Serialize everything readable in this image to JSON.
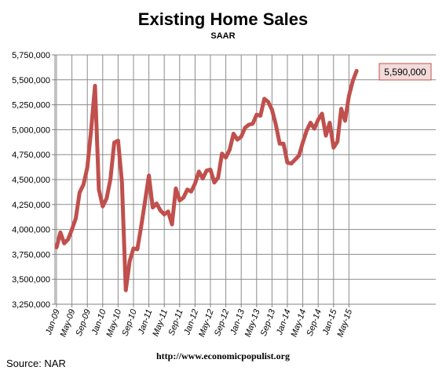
{
  "chart_data": {
    "type": "line",
    "title": "Existing Home Sales",
    "subtitle": "SAAR",
    "source": "Source:  NAR",
    "url": "http://www.economicpopulist.org",
    "ylim": [
      3250000,
      5750000
    ],
    "yticks": [
      "3,250,000",
      "3,500,000",
      "3,750,000",
      "4,000,000",
      "4,250,000",
      "4,500,000",
      "4,750,000",
      "5,000,000",
      "5,250,000",
      "5,500,000",
      "5,750,000"
    ],
    "xticks": [
      "Jan-09",
      "May-09",
      "Sep-09",
      "Jan-10",
      "May-10",
      "Sep-10",
      "Jan-11",
      "May-11",
      "Sep-11",
      "Jan-12",
      "May-12",
      "Sep-12",
      "Jan-13",
      "May-13",
      "Sep-13",
      "Jan-14",
      "May-14",
      "Sep-14",
      "Jan-15",
      "May-15"
    ],
    "grid": true,
    "line_color": "#c0504d",
    "annotation": "5,590,000",
    "series": [
      {
        "values": [
          3820000,
          3970000,
          3860000,
          3900000,
          4000000,
          4110000,
          4370000,
          4450000,
          4620000,
          5000000,
          5440000,
          4400000,
          4230000,
          4310000,
          4500000,
          4870000,
          4890000,
          4470000,
          3390000,
          3680000,
          3810000,
          3800000,
          4030000,
          4280000,
          4540000,
          4220000,
          4260000,
          4190000,
          4150000,
          4180000,
          4050000,
          4410000,
          4290000,
          4320000,
          4400000,
          4380000,
          4460000,
          4580000,
          4510000,
          4590000,
          4600000,
          4470000,
          4520000,
          4760000,
          4720000,
          4800000,
          4960000,
          4900000,
          4930000,
          5020000,
          5050000,
          5060000,
          5150000,
          5140000,
          5310000,
          5280000,
          5200000,
          5050000,
          4860000,
          4860000,
          4670000,
          4660000,
          4700000,
          4740000,
          4870000,
          4990000,
          5070000,
          5010000,
          5100000,
          5160000,
          4940000,
          5070000,
          4820000,
          4880000,
          5210000,
          5090000,
          5340000,
          5490000,
          5590000
        ]
      }
    ]
  }
}
